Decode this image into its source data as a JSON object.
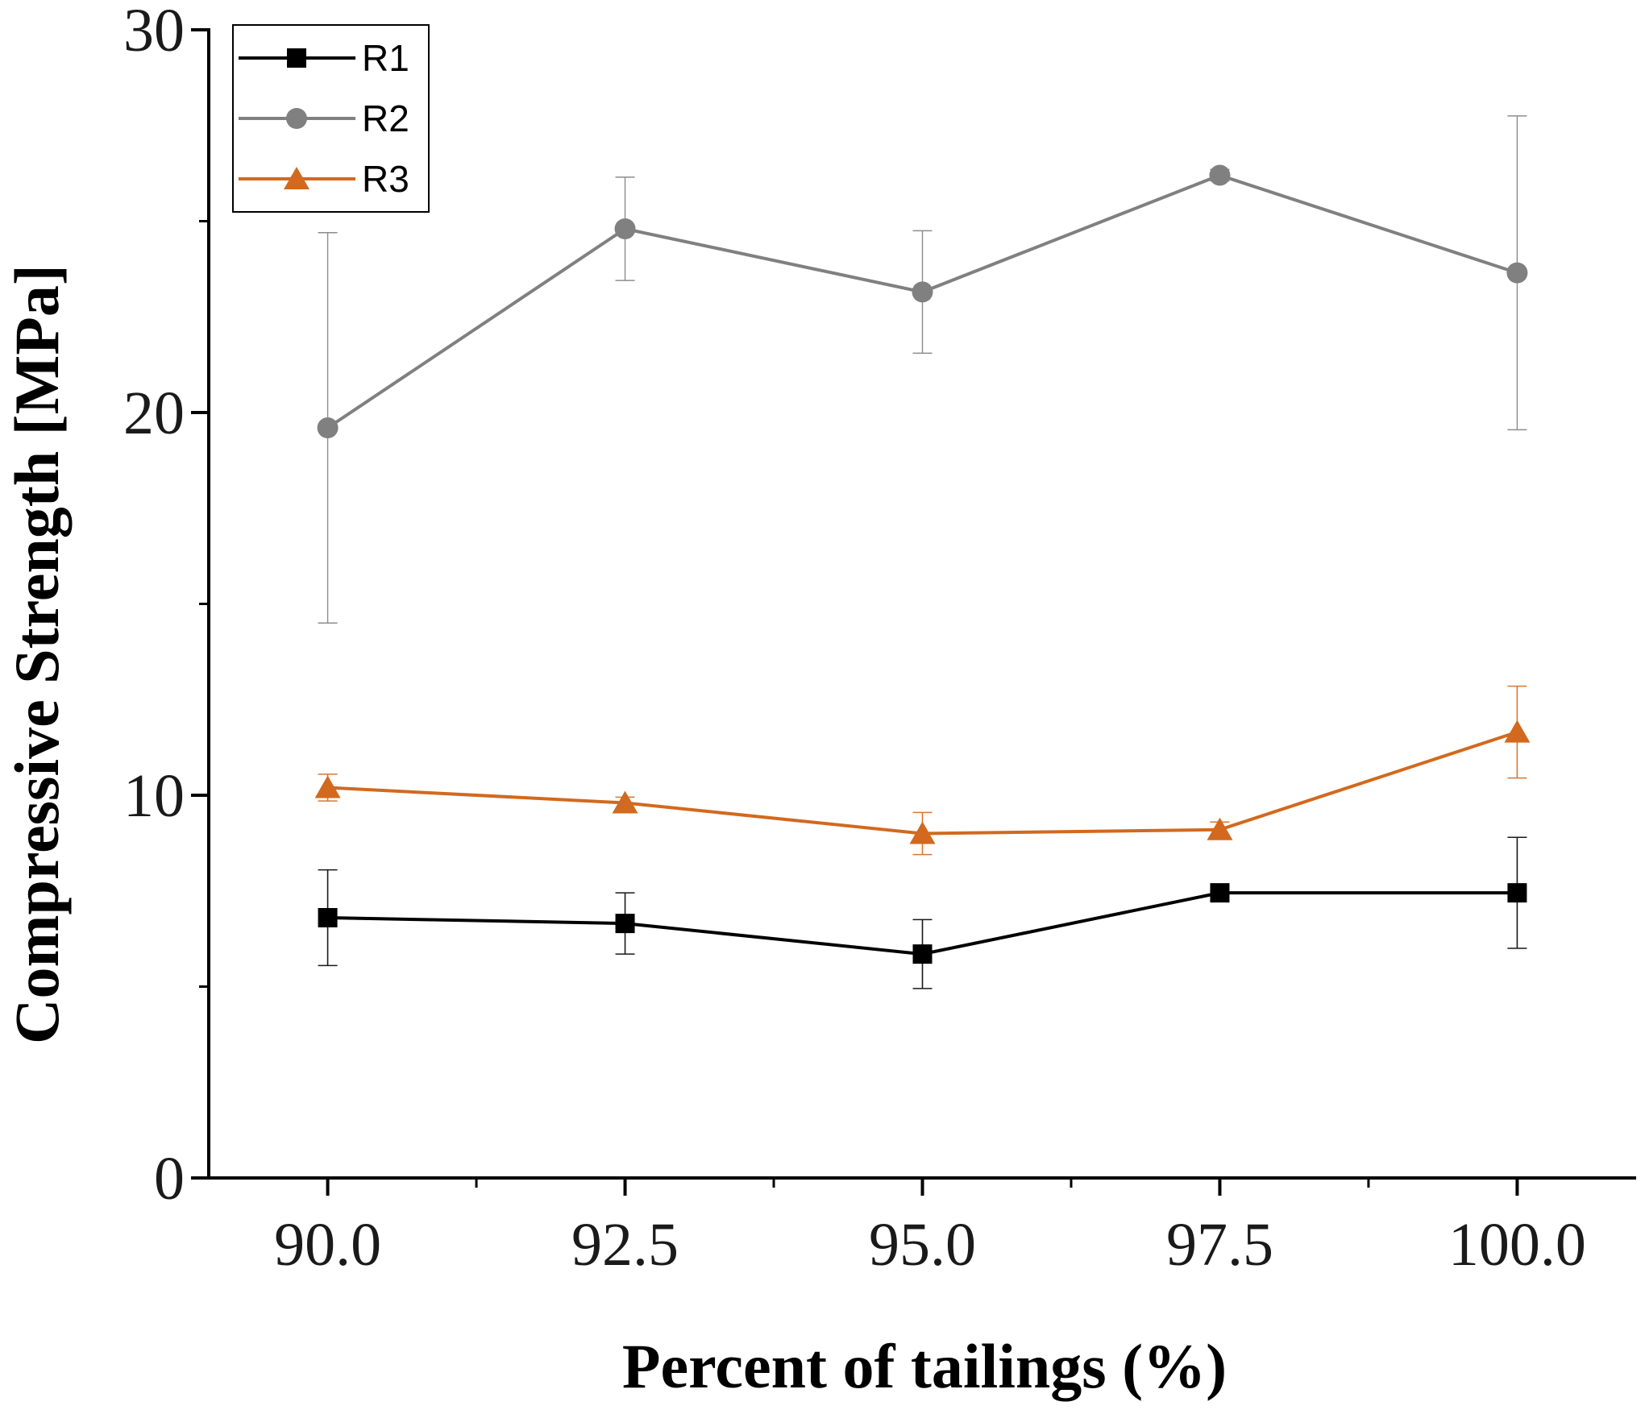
{
  "chart_data": {
    "type": "line",
    "xlabel": "Percent of tailings (%)",
    "ylabel": "Compressive Strength [MPa]",
    "x": [
      90.0,
      92.5,
      95.0,
      97.5,
      100.0
    ],
    "x_tick_labels": [
      "90.0",
      "92.5",
      "95.0",
      "97.5",
      "100.0"
    ],
    "xlim": [
      89.0,
      101.0
    ],
    "ylim": [
      0,
      30
    ],
    "y_ticks": [
      0,
      10,
      20,
      30
    ],
    "y_tick_labels": [
      "0",
      "10",
      "20",
      "30"
    ],
    "y_minor_ticks": [
      5,
      15,
      25
    ],
    "grid": false,
    "legend_position": "top-left",
    "series": [
      {
        "name": "R1",
        "color": "#000000",
        "marker": "square",
        "values": [
          6.8,
          6.65,
          5.85,
          7.45,
          7.45
        ],
        "error": [
          1.25,
          0.8,
          0.9,
          0.0,
          1.45
        ]
      },
      {
        "name": "R2",
        "color": "#808080",
        "marker": "circle",
        "values": [
          19.6,
          24.8,
          23.15,
          26.2,
          23.65
        ],
        "error": [
          5.1,
          1.35,
          1.6,
          0.15,
          4.1
        ]
      },
      {
        "name": "R3",
        "color": "#d2691e",
        "marker": "triangle",
        "values": [
          10.2,
          9.8,
          9.0,
          9.1,
          11.65
        ],
        "error": [
          0.35,
          0.15,
          0.55,
          0.2,
          1.2
        ]
      }
    ]
  }
}
